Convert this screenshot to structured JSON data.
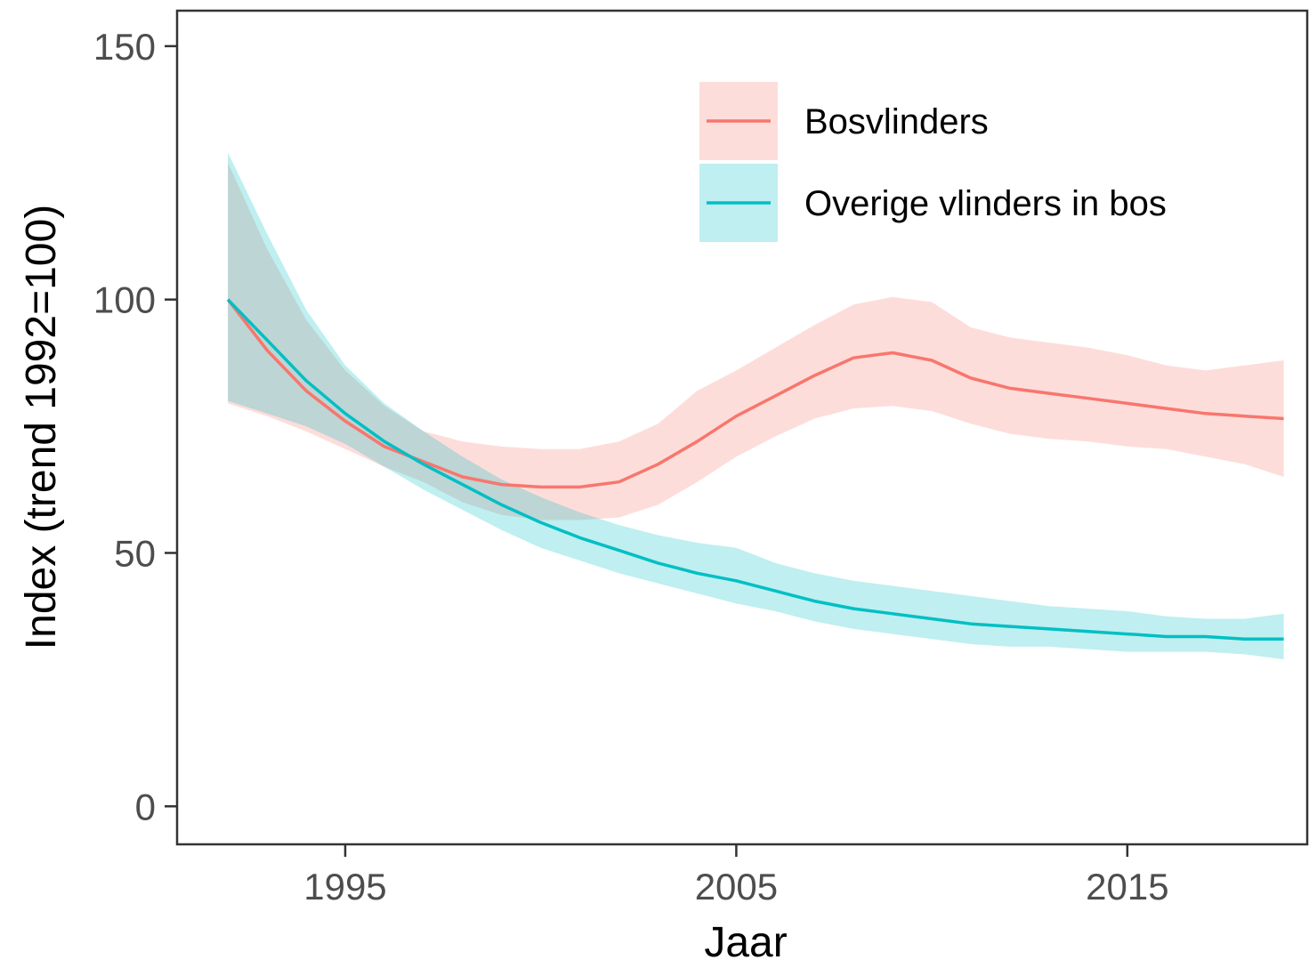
{
  "chart_data": {
    "type": "line",
    "xlabel": "Jaar",
    "ylabel": "Index (trend 1992=100)",
    "xlim": [
      1990.7,
      2019.6
    ],
    "ylim": [
      -7.5,
      157
    ],
    "xticks": [
      1995,
      2005,
      2015
    ],
    "yticks": [
      0,
      50,
      100,
      150
    ],
    "grid": false,
    "legend_position": "top-right",
    "series": [
      {
        "name": "Bosvlinders",
        "color": "#F8766D",
        "x": [
          1992,
          1993,
          1994,
          1995,
          1996,
          1997,
          1998,
          1999,
          2000,
          2001,
          2002,
          2003,
          2004,
          2005,
          2006,
          2007,
          2008,
          2009,
          2010,
          2011,
          2012,
          2013,
          2014,
          2015,
          2016,
          2017,
          2018,
          2019
        ],
        "values": [
          100,
          90,
          82,
          76,
          71,
          68,
          65,
          63.5,
          63,
          63,
          64,
          67.5,
          72,
          77,
          81,
          85,
          88.5,
          89.5,
          88,
          84.5,
          82.5,
          81.5,
          80.5,
          79.5,
          78.5,
          77.5,
          77,
          76.5
        ],
        "lower": [
          79.5,
          77,
          74,
          70.5,
          67,
          64,
          60,
          57.5,
          56.5,
          56.5,
          57,
          59.5,
          64,
          69,
          73,
          76.5,
          78.5,
          79,
          78,
          75.5,
          73.5,
          72.5,
          72,
          71,
          70.5,
          69,
          67.5,
          65
        ],
        "upper": [
          127,
          110,
          96,
          86,
          79,
          74,
          72,
          71,
          70.5,
          70.5,
          72,
          75.5,
          82,
          86,
          90.5,
          95,
          99,
          100.5,
          99.5,
          94.5,
          92.5,
          91.5,
          90.5,
          89,
          87,
          86,
          87,
          88
        ]
      },
      {
        "name": "Overige vlinders in bos",
        "color": "#00BFC4",
        "x": [
          1992,
          1993,
          1994,
          1995,
          1996,
          1997,
          1998,
          1999,
          2000,
          2001,
          2002,
          2003,
          2004,
          2005,
          2006,
          2007,
          2008,
          2009,
          2010,
          2011,
          2012,
          2013,
          2014,
          2015,
          2016,
          2017,
          2018,
          2019
        ],
        "values": [
          100,
          92,
          84,
          77.5,
          72,
          67.5,
          63.5,
          59.5,
          56,
          53,
          50.5,
          48,
          46,
          44.5,
          42.5,
          40.5,
          39,
          38,
          37,
          36,
          35.5,
          35,
          34.5,
          34,
          33.5,
          33.5,
          33,
          33
        ],
        "lower": [
          80,
          77.5,
          75,
          71.5,
          67,
          62.5,
          58.5,
          54.5,
          51,
          48.5,
          46,
          44,
          42,
          40,
          38.5,
          36.5,
          35,
          34,
          33,
          32,
          31.5,
          31.5,
          31,
          30.5,
          30.5,
          30.5,
          30,
          29
        ],
        "upper": [
          129,
          113,
          98,
          87,
          79.5,
          74,
          69,
          64.5,
          61,
          58,
          55.5,
          53.5,
          52,
          51,
          48,
          46,
          44.5,
          43.5,
          42.5,
          41.5,
          40.5,
          39.5,
          39,
          38.5,
          37.5,
          37,
          37,
          38
        ]
      }
    ]
  }
}
